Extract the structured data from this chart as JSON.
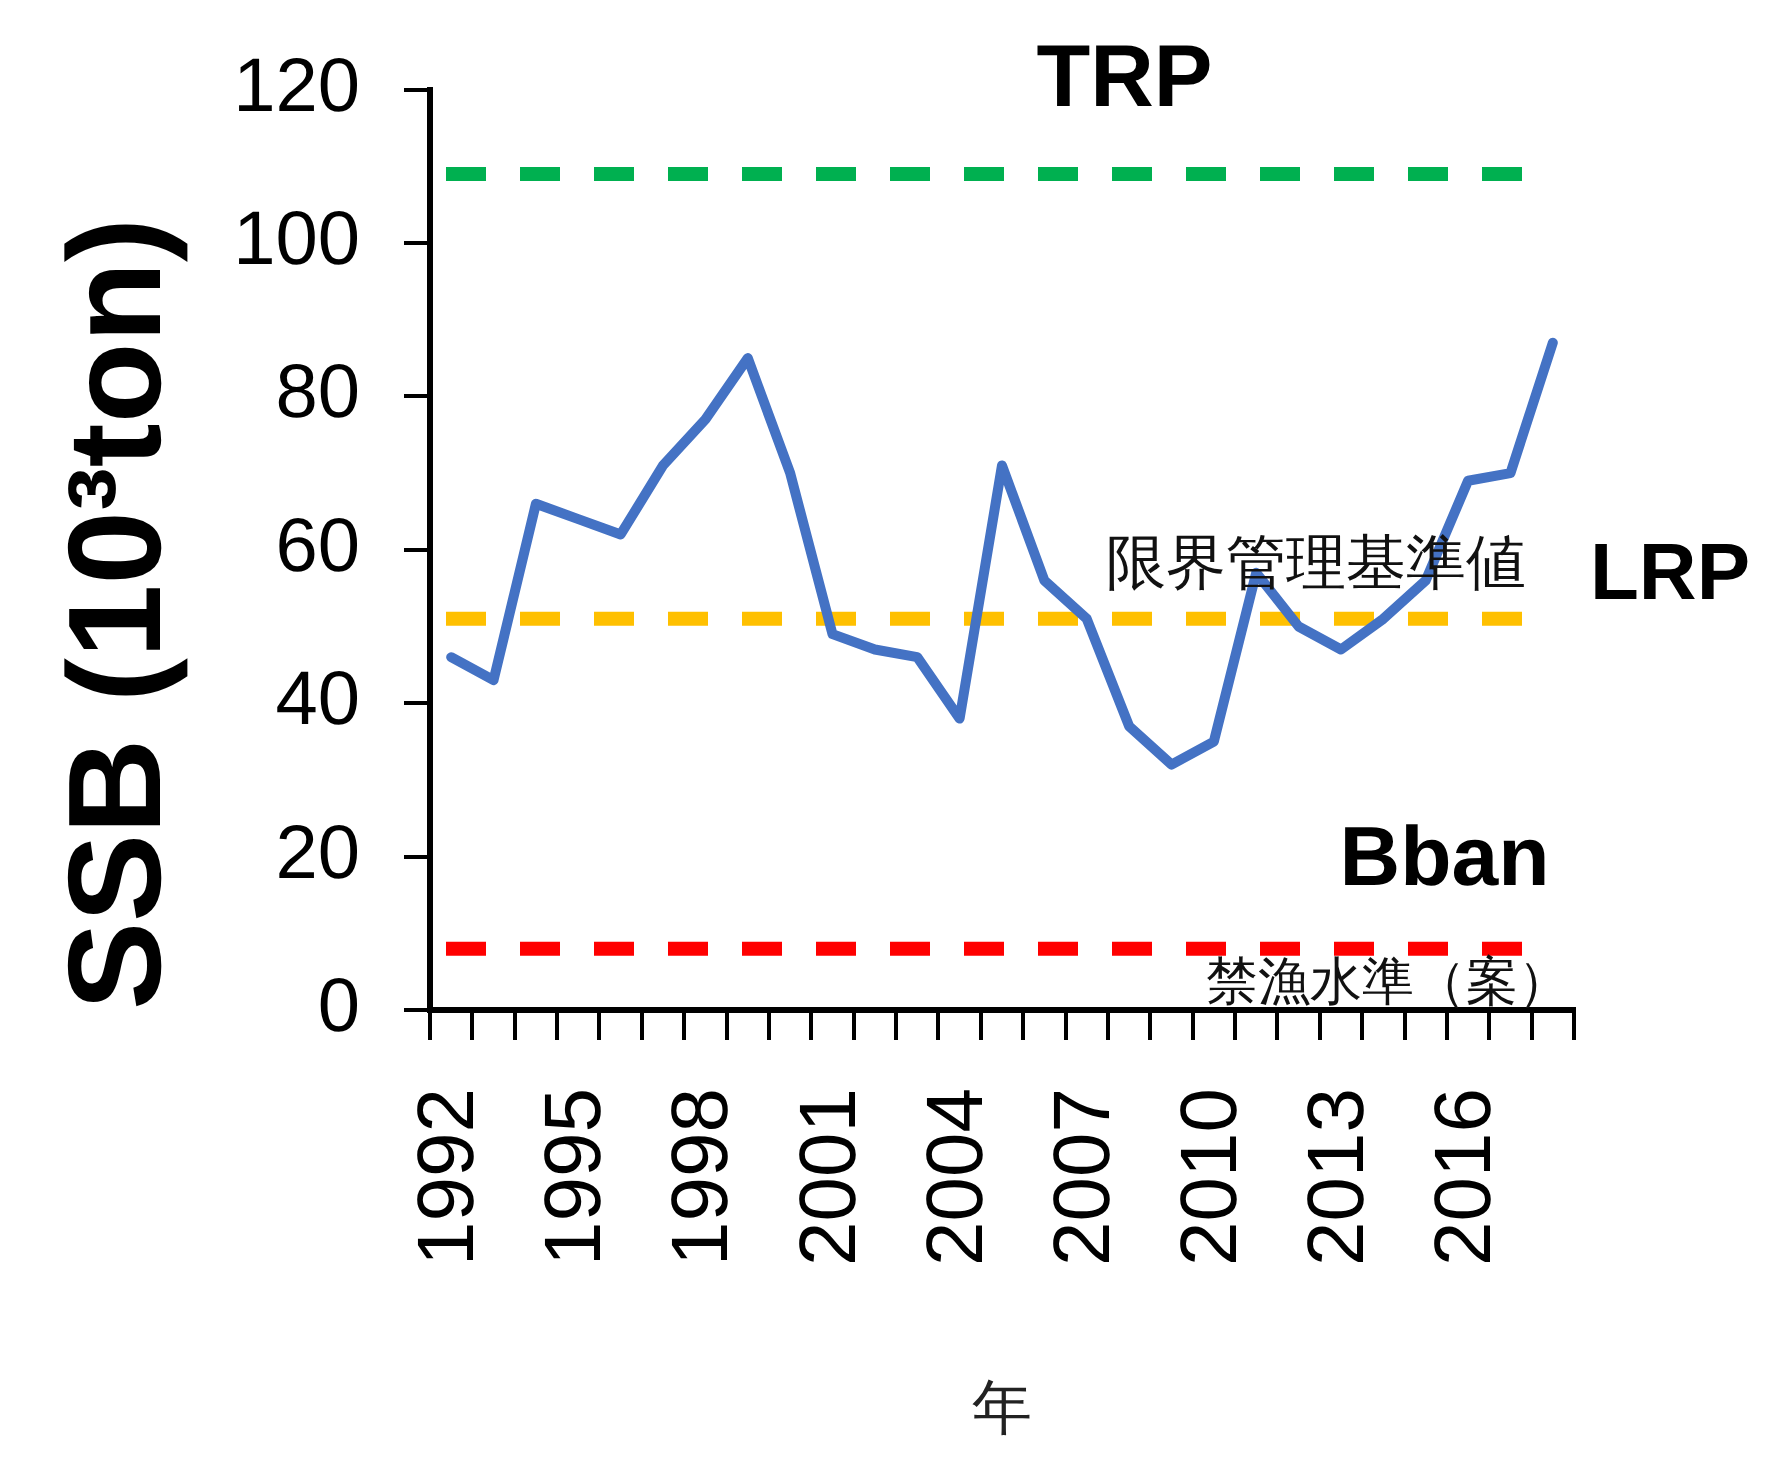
{
  "chart_data": {
    "type": "line",
    "xlabel": "年",
    "ylabel": "SSB (10³ton)",
    "categories": [
      "1992",
      null,
      null,
      "1995",
      null,
      null,
      "1998",
      null,
      null,
      "2001",
      null,
      null,
      "2004",
      null,
      null,
      "2007",
      null,
      null,
      "2010",
      null,
      null,
      "2013",
      null,
      null,
      "2016",
      null,
      null
    ],
    "series": [
      {
        "color": "#4472c4",
        "values": [
          46,
          43,
          66,
          64,
          62,
          71,
          77,
          85,
          70,
          49,
          47,
          46,
          38,
          71,
          56,
          51,
          37,
          32,
          35,
          57,
          50,
          47,
          51,
          56,
          69,
          70,
          87
        ]
      }
    ],
    "ylim": [
      0,
      120
    ],
    "yticks": [
      0,
      20,
      40,
      60,
      80,
      100,
      120
    ],
    "marker": "none",
    "ref_lines": [
      {
        "axis": "y",
        "value": 109,
        "label": "TRP",
        "color": "#00b050",
        "line_style": "dashed"
      },
      {
        "axis": "y",
        "value": 51,
        "label": "LRP",
        "color": "#ffc000",
        "line_style": "dashed"
      },
      {
        "axis": "y",
        "value": 8,
        "label": "Bban",
        "color": "#ff0000",
        "line_style": "dashed"
      }
    ],
    "annotations": [
      {
        "text": "限界管理基準値",
        "y": 51
      },
      {
        "text": "禁漁水準（案）",
        "y": 8
      }
    ]
  }
}
